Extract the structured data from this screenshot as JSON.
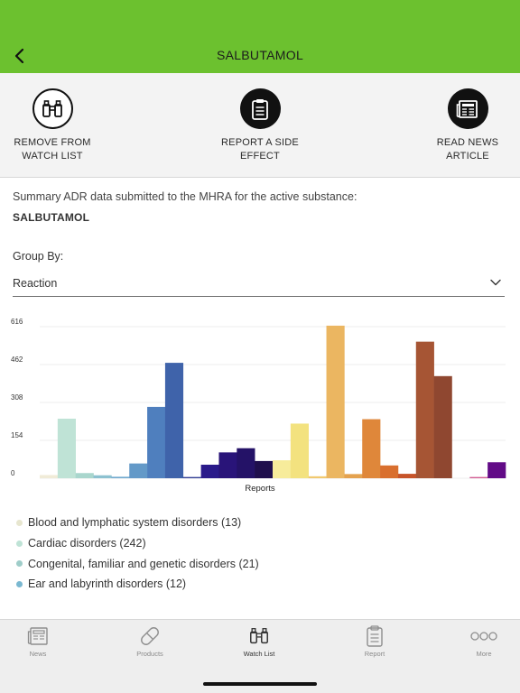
{
  "header": {
    "title": "SALBUTAMOL",
    "back_icon": "chevron-left-icon"
  },
  "actions": [
    {
      "label": "REMOVE FROM\nWATCH LIST",
      "icon": "binoculars-icon"
    },
    {
      "label": "REPORT A SIDE\nEFFECT",
      "icon": "clipboard-icon"
    },
    {
      "label": "READ NEWS\nARTICLE",
      "icon": "newspaper-icon"
    }
  ],
  "summary": {
    "text": "Summary ADR data submitted to the MHRA for the active substance:",
    "substance": "SALBUTAMOL"
  },
  "group_by": {
    "label": "Group By:",
    "value": "Reaction"
  },
  "chart_data": {
    "type": "bar",
    "xlabel": "Reports",
    "ylim": [
      0,
      616
    ],
    "yticks": [
      0,
      154,
      308,
      462,
      616
    ],
    "grid": true,
    "values": [
      13,
      242,
      21,
      12,
      6,
      60,
      290,
      469,
      5,
      55,
      105,
      122,
      70,
      73,
      222,
      8,
      620,
      17,
      240,
      52,
      18,
      555,
      415,
      0,
      5,
      65
    ],
    "colors": [
      "#f0ebd7",
      "#bfe3d6",
      "#a9d6cd",
      "#8cc1d0",
      "#71a9cf",
      "#6399c8",
      "#4f7fbe",
      "#3f63aa",
      "#2f3c93",
      "#2a1a8a",
      "#291479",
      "#241267",
      "#1f0f4d",
      "#f7ec9b",
      "#f3e27f",
      "#f1c96f",
      "#ebb661",
      "#e4a24f",
      "#df873a",
      "#d96f2e",
      "#c7542a",
      "#a65534",
      "#8f4730",
      "#e9d6e8",
      "#d25a91",
      "#620b87"
    ],
    "legend": [
      {
        "name": "Blood and lymphatic system disorders (13)",
        "color": "#e7e6cf"
      },
      {
        "name": "Cardiac disorders (242)",
        "color": "#bfe3d6"
      },
      {
        "name": "Congenital, familiar and genetic disorders (21)",
        "color": "#9fcdc9"
      },
      {
        "name": "Ear and labyrinth disorders (12)",
        "color": "#7ab8d1"
      }
    ]
  },
  "tabs": [
    {
      "label": "News",
      "icon": "newspaper-icon"
    },
    {
      "label": "Products",
      "icon": "pill-icon"
    },
    {
      "label": "Watch List",
      "icon": "binoculars-icon"
    },
    {
      "label": "Report",
      "icon": "clipboard-icon"
    },
    {
      "label": "More",
      "icon": "more-icon"
    }
  ]
}
